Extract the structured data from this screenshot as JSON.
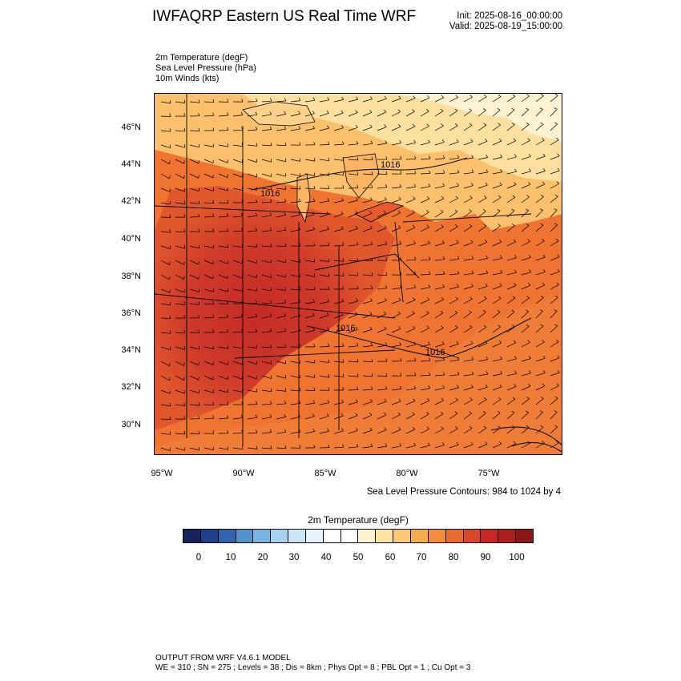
{
  "header": {
    "title": "IWFAQRP Eastern US Real Time WRF",
    "init": "Init: 2025-08-16_00:00:00",
    "valid": "Valid: 2025-08-19_15:00:00"
  },
  "fields": [
    "2m Temperature   (degF)",
    "Sea Level Pressure   (hPa)",
    "10m Winds   (kts)"
  ],
  "map": {
    "lat_labels": [
      "46°N",
      "44°N",
      "42°N",
      "40°N",
      "38°N",
      "36°N",
      "34°N",
      "32°N",
      "30°N"
    ],
    "lon_labels": [
      "95°W",
      "90°W",
      "85°W",
      "80°W",
      "75°W"
    ],
    "contour_labels": [
      "1016",
      "1016",
      "1016",
      "1016"
    ]
  },
  "slp_note": "Sea Level Pressure Contours: 984 to 1024 by 4",
  "colorbar": {
    "title": "2m Temperature  (degF)",
    "labels": [
      "0",
      "10",
      "20",
      "30",
      "40",
      "50",
      "60",
      "70",
      "80",
      "90",
      "100"
    ],
    "colors": [
      "#16245e",
      "#1f3f8a",
      "#2e66b0",
      "#4f93cf",
      "#74b5e4",
      "#a4d3f2",
      "#cae6f7",
      "#e6f3fb",
      "#ffffff",
      "#ffffff",
      "#fff3cc",
      "#fde39e",
      "#fbc86f",
      "#f9ad4a",
      "#f58d37",
      "#ec6b2e",
      "#dd4529",
      "#c92626",
      "#ad1c1f",
      "#8e1618"
    ]
  },
  "footer": {
    "line1": "OUTPUT FROM WRF V4.6.1 MODEL",
    "line2": "WE = 310 ; SN = 275 ; Levels = 38 ; Dis = 8km ; Phys Opt = 8 ; PBL Opt = 1 ; Cu Opt = 3"
  }
}
